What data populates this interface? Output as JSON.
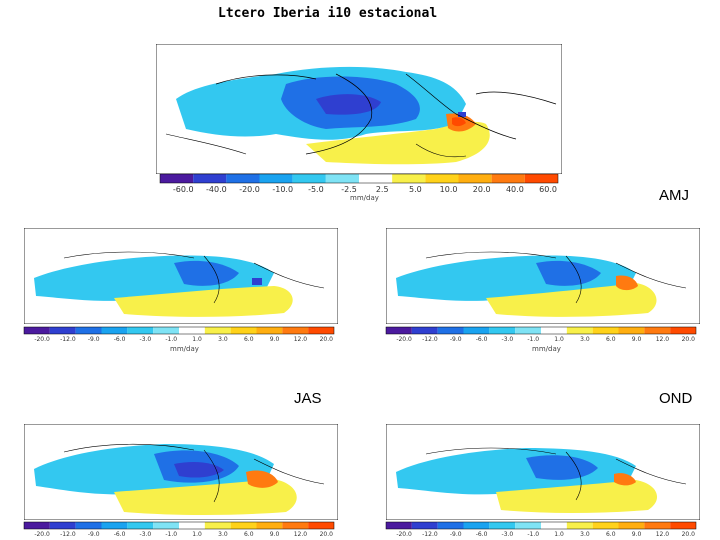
{
  "title": "Ltcero Iberia i10 estacional",
  "seasons": {
    "amj": "AMJ",
    "jas": "JAS",
    "ond": "OND"
  },
  "units": "mm/day",
  "colorbar_main": {
    "ticks": [
      "-60.0",
      "-40.0",
      "-20.0",
      "-10.0",
      "-5.0",
      "-2.5",
      "2.5",
      "5.0",
      "10.0",
      "20.0",
      "40.0",
      "60.0"
    ]
  },
  "colorbar_small": {
    "ticks": [
      "-20.0",
      "-12.0",
      "-9.0",
      "-6.0",
      "-3.0",
      "-1.0",
      "1.0",
      "3.0",
      "6.0",
      "9.0",
      "12.0",
      "20.0"
    ]
  },
  "colors": {
    "scale": [
      "#4b1a9e",
      "#2f3fd0",
      "#1f70e6",
      "#1aa3f0",
      "#33c8f0",
      "#7fe3f5",
      "#ffffff",
      "#f8f04a",
      "#ffd21a",
      "#ffae10",
      "#ff7a10",
      "#ff4a00"
    ],
    "land_line": "#000000"
  }
}
